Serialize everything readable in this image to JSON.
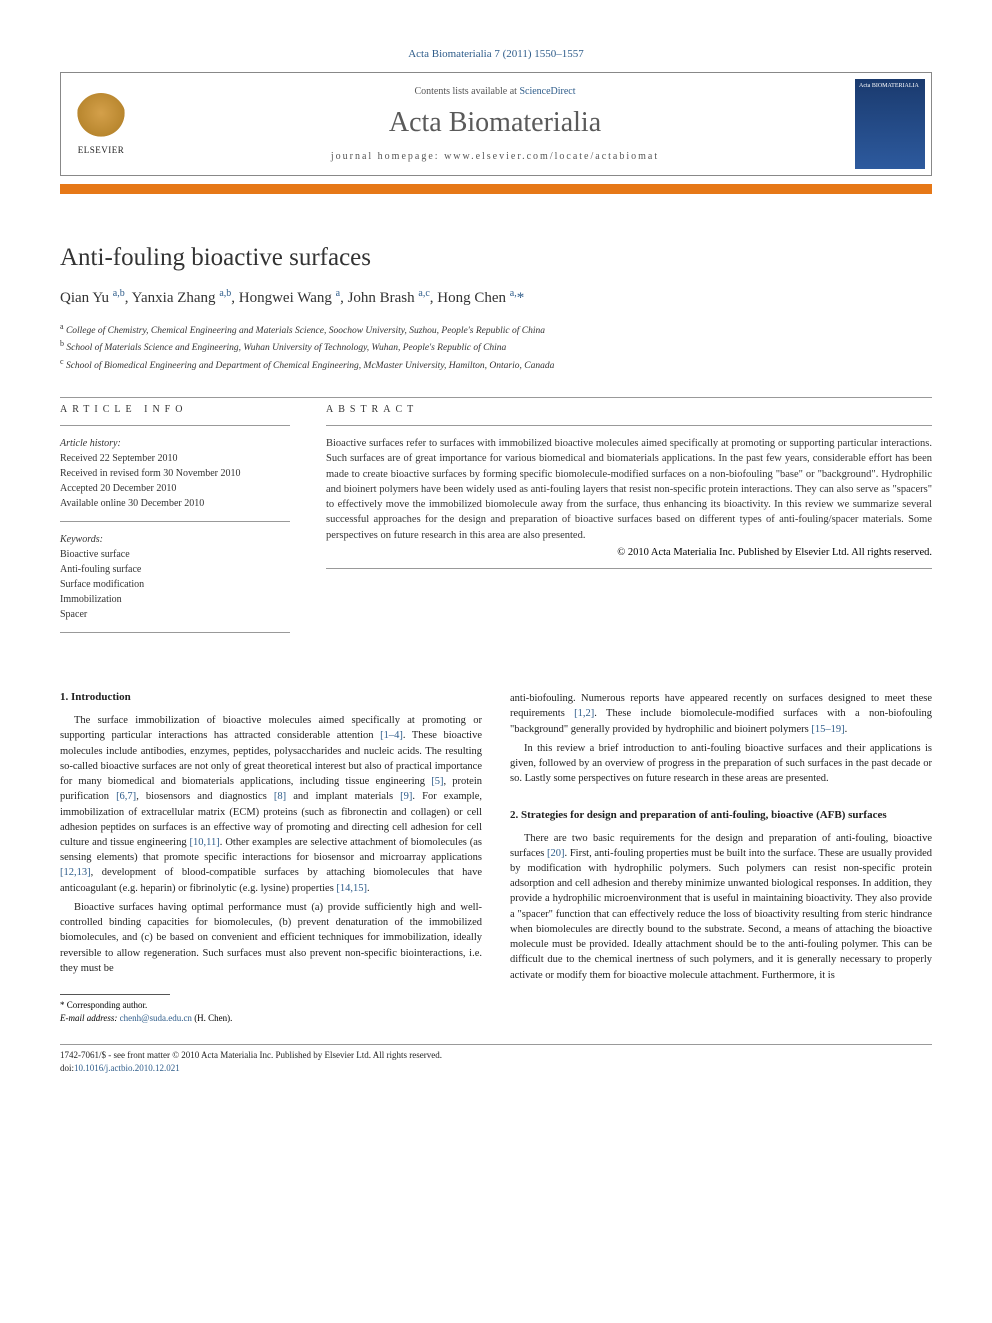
{
  "journal_ref": "Acta Biomaterialia 7 (2011) 1550–1557",
  "header": {
    "contents_line_prefix": "Contents lists available at ",
    "contents_link": "ScienceDirect",
    "journal_name": "Acta Biomaterialia",
    "homepage_label": "journal homepage: ",
    "homepage_url": "www.elsevier.com/locate/actabiomat",
    "elsevier_label": "ELSEVIER",
    "cover_text": "Acta BIOMATERIALIA"
  },
  "title": "Anti-fouling bioactive surfaces",
  "authors_html": "Qian Yu <span class='sup'>a,b</span>, Yanxia Zhang <span class='sup'>a,b</span>, Hongwei Wang <span class='sup'>a</span>, John Brash <span class='sup'>a,c</span>, Hong Chen <span class='sup'>a,</span><span class='star'>*</span>",
  "affiliations": {
    "a": "College of Chemistry, Chemical Engineering and Materials Science, Soochow University, Suzhou, People's Republic of China",
    "b": "School of Materials Science and Engineering, Wuhan University of Technology, Wuhan, People's Republic of China",
    "c": "School of Biomedical Engineering and Department of Chemical Engineering, McMaster University, Hamilton, Ontario, Canada"
  },
  "info": {
    "heading": "ARTICLE INFO",
    "history_label": "Article history:",
    "received": "Received 22 September 2010",
    "revised": "Received in revised form 30 November 2010",
    "accepted": "Accepted 20 December 2010",
    "online": "Available online 30 December 2010",
    "keywords_label": "Keywords:",
    "keywords": [
      "Bioactive surface",
      "Anti-fouling surface",
      "Surface modification",
      "Immobilization",
      "Spacer"
    ]
  },
  "abstract": {
    "heading": "ABSTRACT",
    "text": "Bioactive surfaces refer to surfaces with immobilized bioactive molecules aimed specifically at promoting or supporting particular interactions. Such surfaces are of great importance for various biomedical and biomaterials applications. In the past few years, considerable effort has been made to create bioactive surfaces by forming specific biomolecule-modified surfaces on a non-biofouling \"base\" or \"background\". Hydrophilic and bioinert polymers have been widely used as anti-fouling layers that resist non-specific protein interactions. They can also serve as \"spacers\" to effectively move the immobilized biomolecule away from the surface, thus enhancing its bioactivity. In this review we summarize several successful approaches for the design and preparation of bioactive surfaces based on different types of anti-fouling/spacer materials. Some perspectives on future research in this area are also presented.",
    "copyright": "© 2010 Acta Materialia Inc. Published by Elsevier Ltd. All rights reserved."
  },
  "sections": {
    "intro_heading": "1. Introduction",
    "intro_para1": "The surface immobilization of bioactive molecules aimed specifically at promoting or supporting particular interactions has attracted considerable attention [1–4]. These bioactive molecules include antibodies, enzymes, peptides, polysaccharides and nucleic acids. The resulting so-called bioactive surfaces are not only of great theoretical interest but also of practical importance for many biomedical and biomaterials applications, including tissue engineering [5], protein purification [6,7], biosensors and diagnostics [8] and implant materials [9]. For example, immobilization of extracellular matrix (ECM) proteins (such as fibronectin and collagen) or cell adhesion peptides on surfaces is an effective way of promoting and directing cell adhesion for cell culture and tissue engineering [10,11]. Other examples are selective attachment of biomolecules (as sensing elements) that promote specific interactions for biosensor and microarray applications [12,13], development of blood-compatible surfaces by attaching biomolecules that have anticoagulant (e.g. heparin) or fibrinolytic (e.g. lysine) properties [14,15].",
    "intro_para2": "Bioactive surfaces having optimal performance must (a) provide sufficiently high and well-controlled binding capacities for biomolecules, (b) prevent denaturation of the immobilized biomolecules, and (c) be based on convenient and efficient techniques for immobilization, ideally reversible to allow regeneration. Such surfaces must also prevent non-specific biointeractions, i.e. they must be",
    "col2_para1": "anti-biofouling. Numerous reports have appeared recently on surfaces designed to meet these requirements [1,2]. These include biomolecule-modified surfaces with a non-biofouling \"background\" generally provided by hydrophilic and bioinert polymers [15–19].",
    "col2_para2": "In this review a brief introduction to anti-fouling bioactive surfaces and their applications is given, followed by an overview of progress in the preparation of such surfaces in the past decade or so. Lastly some perspectives on future research in these areas are presented.",
    "section2_heading": "2. Strategies for design and preparation of anti-fouling, bioactive (AFB) surfaces",
    "section2_para1": "There are two basic requirements for the design and preparation of anti-fouling, bioactive surfaces [20]. First, anti-fouling properties must be built into the surface. These are usually provided by modification with hydrophilic polymers. Such polymers can resist non-specific protein adsorption and cell adhesion and thereby minimize unwanted biological responses. In addition, they provide a hydrophilic microenvironment that is useful in maintaining bioactivity. They also provide a \"spacer\" function that can effectively reduce the loss of bioactivity resulting from steric hindrance when biomolecules are directly bound to the substrate. Second, a means of attaching the bioactive molecule must be provided. Ideally attachment should be to the anti-fouling polymer. This can be difficult due to the chemical inertness of such polymers, and it is generally necessary to properly activate or modify them for bioactive molecule attachment. Furthermore, it is"
  },
  "footnote": {
    "corresponding": "* Corresponding author.",
    "email_label": "E-mail address:",
    "email": "chenh@suda.edu.cn",
    "email_name": "(H. Chen)."
  },
  "footer": {
    "issn_line": "1742-7061/$ - see front matter © 2010 Acta Materialia Inc. Published by Elsevier Ltd. All rights reserved.",
    "doi_label": "doi:",
    "doi": "10.1016/j.actbio.2010.12.021"
  },
  "colors": {
    "link": "#2e5c8a",
    "accent_bar": "#e67817",
    "text": "#222222",
    "cover_bg": "#1a3a6e"
  }
}
